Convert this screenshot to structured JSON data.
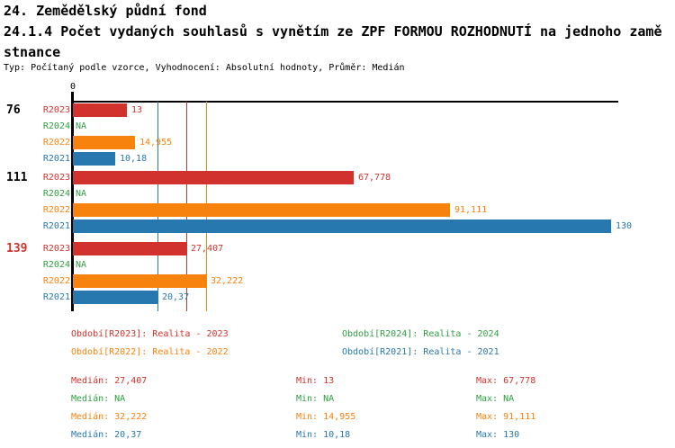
{
  "header": {
    "line1": "24. Zemědělský půdní fond",
    "line2": "24.1.4 Počet vydaných souhlasů s vynětím ze ZPF FORMOU ROZHODNUTÍ na jednoho zamě",
    "line3": "stnance",
    "subtitle": "Typ: Počítaný podle vzorce, Vyhodnocení: Absolutní hodnoty, Průměr: Medián"
  },
  "colors": {
    "R2023": "#d2322d",
    "R2024": "#2f9e41",
    "R2022": "#f8820e",
    "R2021": "#2878b0",
    "axis": "#000000",
    "highlight_group_label": "#d2322d"
  },
  "chart_data": {
    "type": "bar",
    "orientation": "horizontal",
    "origin_label": "0",
    "xlim": [
      0,
      131.5
    ],
    "grid": "median-lines-only",
    "series": [
      {
        "id": "R2023",
        "name": "Realita - 2023",
        "color": "#d2322d"
      },
      {
        "id": "R2024",
        "name": "Realita - 2024",
        "color": "#2f9e41"
      },
      {
        "id": "R2022",
        "name": "Realita - 2022",
        "color": "#f8820e"
      },
      {
        "id": "R2021",
        "name": "Realita - 2021",
        "color": "#2878b0"
      }
    ],
    "groups": [
      {
        "label": "76",
        "label_color": "#000000",
        "rows": [
          {
            "series": "R2023",
            "value": 13,
            "display": "13"
          },
          {
            "series": "R2024",
            "value": null,
            "display": "NA"
          },
          {
            "series": "R2022",
            "value": 14.955,
            "display": "14,955"
          },
          {
            "series": "R2021",
            "value": 10.18,
            "display": "10,18"
          }
        ]
      },
      {
        "label": "111",
        "label_color": "#000000",
        "rows": [
          {
            "series": "R2023",
            "value": 67.778,
            "display": "67,778"
          },
          {
            "series": "R2024",
            "value": null,
            "display": "NA"
          },
          {
            "series": "R2022",
            "value": 91.111,
            "display": "91,111"
          },
          {
            "series": "R2021",
            "value": 130,
            "display": "130"
          }
        ]
      },
      {
        "label": "139",
        "label_color": "#d2322d",
        "rows": [
          {
            "series": "R2023",
            "value": 27.407,
            "display": "27,407"
          },
          {
            "series": "R2024",
            "value": null,
            "display": "NA"
          },
          {
            "series": "R2022",
            "value": 32.222,
            "display": "32,222"
          },
          {
            "series": "R2021",
            "value": 20.37,
            "display": "20,37"
          }
        ]
      }
    ],
    "median_lines": [
      {
        "series": "R2023",
        "value": 27.407
      },
      {
        "series": "R2022",
        "value": 32.222
      },
      {
        "series": "R2021",
        "value": 20.37
      }
    ]
  },
  "legend": {
    "items": [
      {
        "series": "R2023",
        "label": "Období[R2023]: Realita - 2023"
      },
      {
        "series": "R2024",
        "label": "Období[R2024]: Realita - 2024"
      },
      {
        "series": "R2022",
        "label": "Období[R2022]: Realita - 2022"
      },
      {
        "series": "R2021",
        "label": "Období[R2021]: Realita - 2021"
      }
    ]
  },
  "stats": {
    "rows": [
      {
        "series": "R2023",
        "median": "Medián: 27,407",
        "min": "Min: 13",
        "max": "Max: 67,778"
      },
      {
        "series": "R2024",
        "median": "Medián: NA",
        "min": "Min: NA",
        "max": "Max: NA"
      },
      {
        "series": "R2022",
        "median": "Medián: 32,222",
        "min": "Min: 14,955",
        "max": "Max: 91,111"
      },
      {
        "series": "R2021",
        "median": "Medián: 20,37",
        "min": "Min: 10,18",
        "max": "Max: 130"
      }
    ]
  }
}
